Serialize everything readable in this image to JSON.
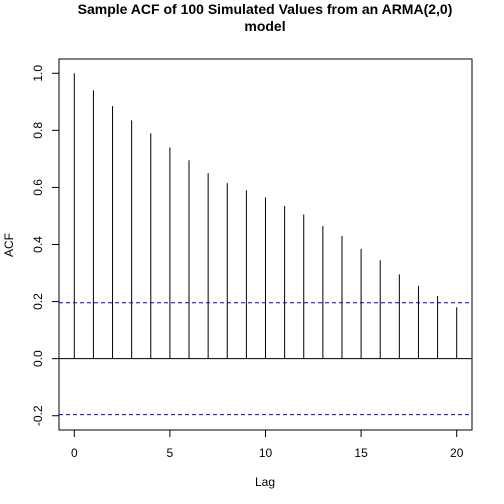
{
  "chart_data": {
    "type": "bar",
    "title_line1": "Sample ACF of 100 Simulated Values from an ARMA(2,0)",
    "title_line2": "model",
    "xlabel": "Lag",
    "ylabel": "ACF",
    "x": [
      0,
      1,
      2,
      3,
      4,
      5,
      6,
      7,
      8,
      9,
      10,
      11,
      12,
      13,
      14,
      15,
      16,
      17,
      18,
      19,
      20
    ],
    "values": [
      1.0,
      0.94,
      0.885,
      0.835,
      0.79,
      0.74,
      0.695,
      0.65,
      0.615,
      0.59,
      0.565,
      0.535,
      0.505,
      0.465,
      0.43,
      0.385,
      0.345,
      0.295,
      0.255,
      0.22,
      0.18
    ],
    "xlim": [
      -0.8,
      20.8
    ],
    "ylim": [
      -0.25,
      1.05
    ],
    "x_ticks": [
      0,
      5,
      10,
      15,
      20
    ],
    "x_tick_labels": [
      "0",
      "5",
      "10",
      "15",
      "20"
    ],
    "y_ticks": [
      -0.2,
      0.0,
      0.2,
      0.4,
      0.6,
      0.8,
      1.0
    ],
    "y_tick_labels": [
      "-0.2",
      "0.0",
      "0.2",
      "0.4",
      "0.6",
      "0.8",
      "1.0"
    ],
    "confidence_bounds": [
      0.196,
      -0.196
    ],
    "colors": {
      "bars": "#000000",
      "bounds": "#0000CD",
      "zero_line": "#000000"
    }
  }
}
